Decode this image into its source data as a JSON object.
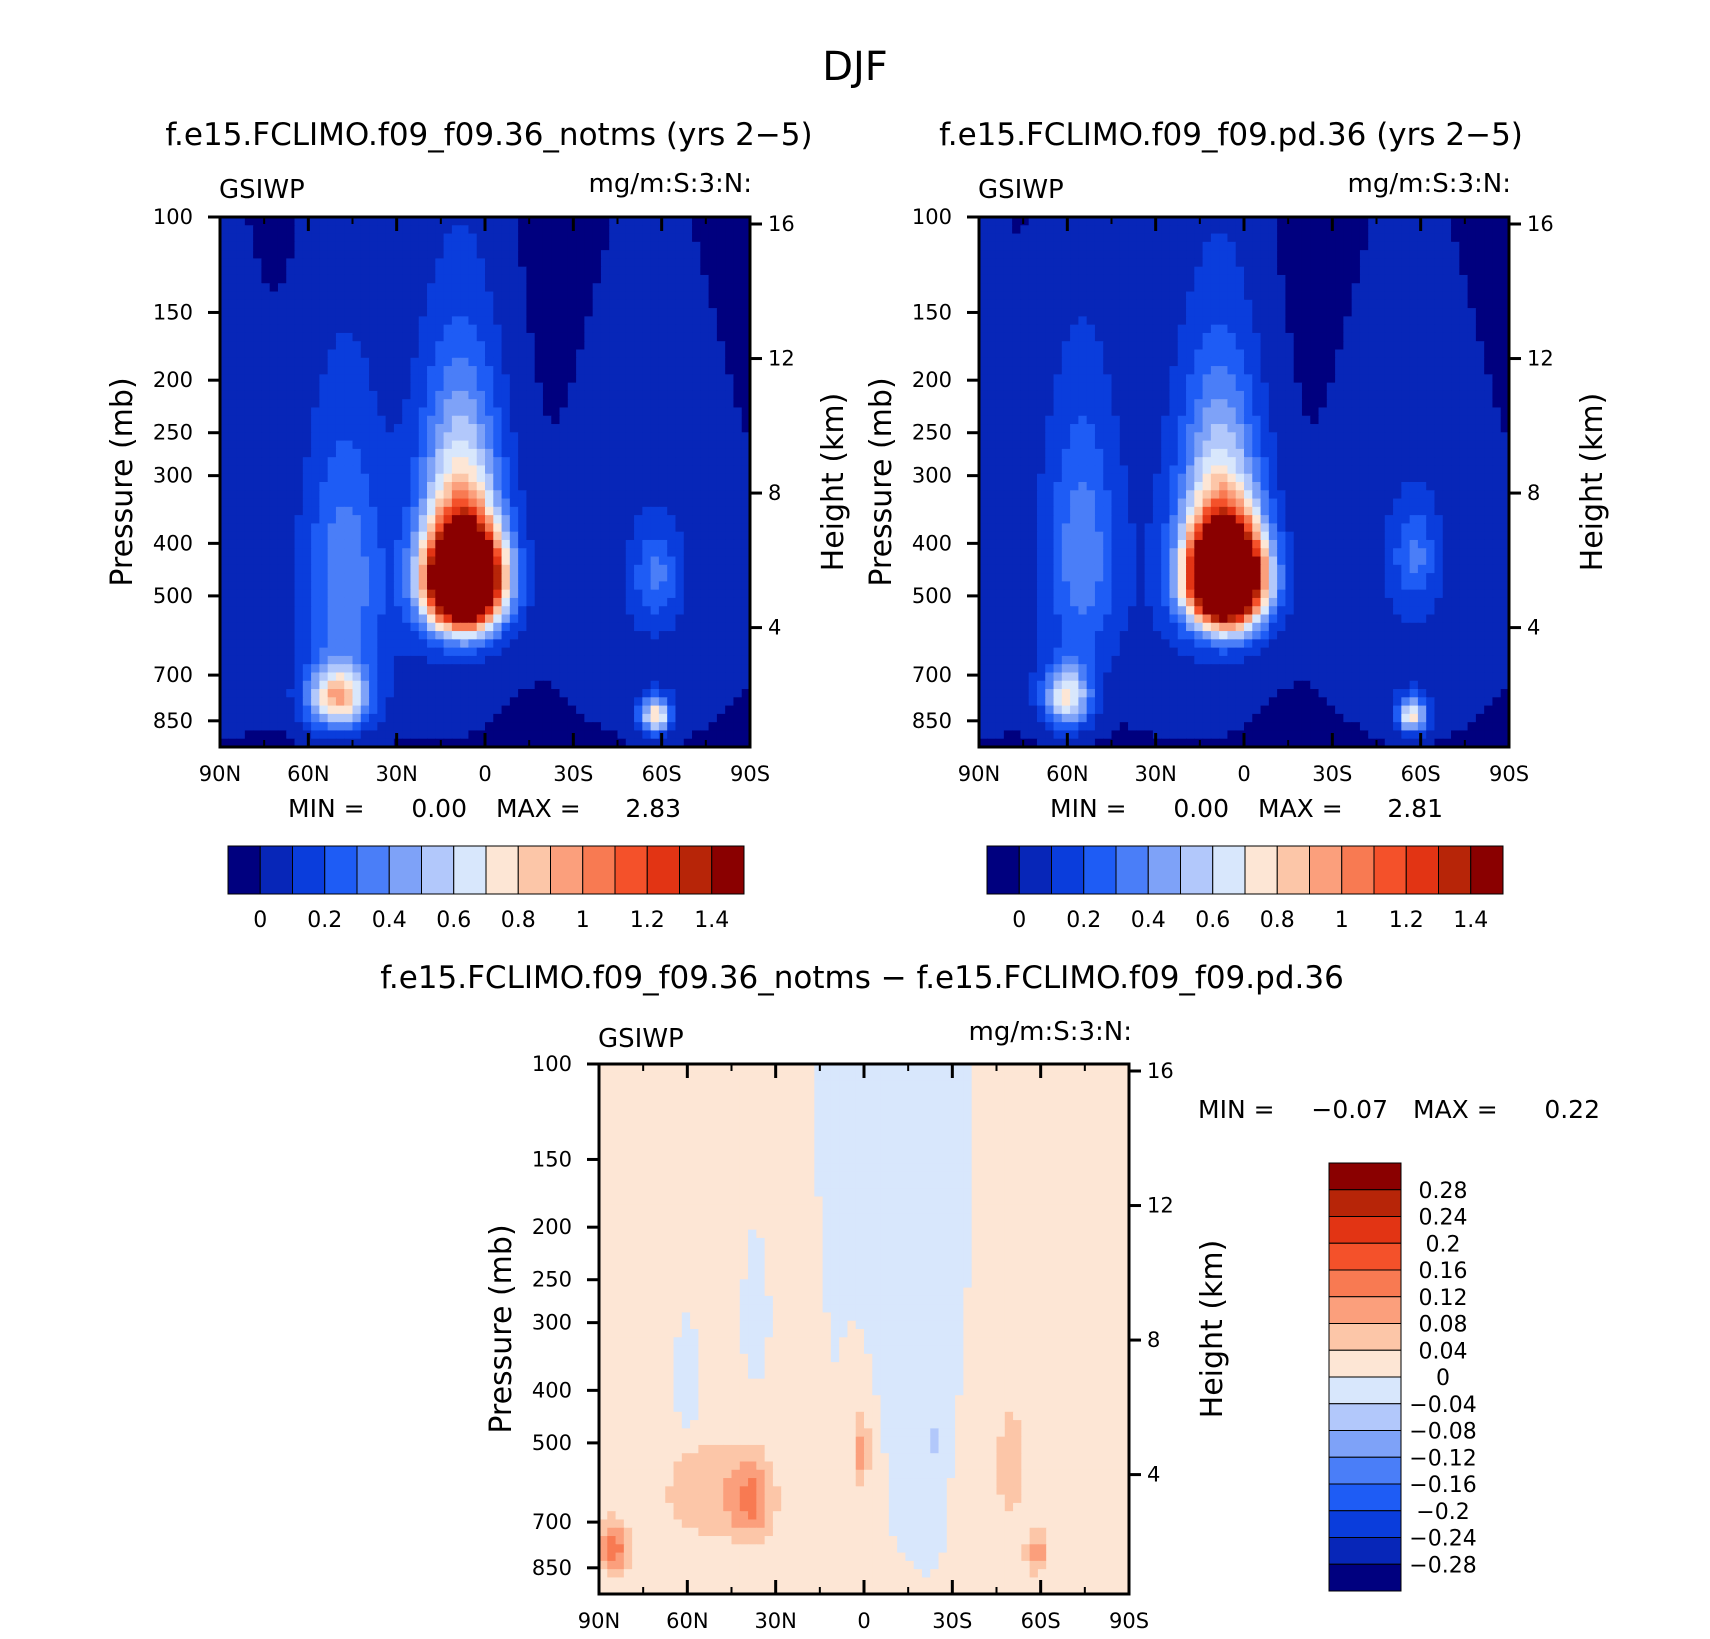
{
  "figure": {
    "title": "DJF"
  },
  "colors": {
    "panel_scale": [
      "#00007f",
      "#0726b8",
      "#0a3ddc",
      "#1e5cf5",
      "#4a7ef8",
      "#7ea2f8",
      "#b2c8fb",
      "#d8e7fc",
      "#fde6d5",
      "#fcc6a8",
      "#fb9f7c",
      "#f87a52",
      "#f4512a",
      "#e23414",
      "#b72508",
      "#8a0000"
    ],
    "diff_scale": [
      "#00007f",
      "#0726b8",
      "#0a3ddc",
      "#1e5cf5",
      "#4a7ef8",
      "#7ea2f8",
      "#b2c8fb",
      "#d8e7fc",
      "#fde6d5",
      "#fcc6a8",
      "#fb9f7c",
      "#f87a52",
      "#f4512a",
      "#e23414",
      "#b72508",
      "#8a0000"
    ]
  },
  "chart_data": [
    {
      "type": "heatmap",
      "title": "f.e15.FCLIMO.f09_f09.36_notms (yrs 2−5)",
      "left_label": "GSIWP",
      "right_label": "mg/m:S:3:N:",
      "ylabel": "Pressure (mb)",
      "y2label": "Height (km)",
      "x_ticks": [
        "90N",
        "60N",
        "30N",
        "0",
        "30S",
        "60S",
        "90S"
      ],
      "y_ticks": [
        "100",
        "150",
        "200",
        "250",
        "300",
        "400",
        "500",
        "700",
        "850"
      ],
      "y2_ticks": [
        "16",
        "12",
        "8",
        "4"
      ],
      "min_label": "MIN =",
      "min_value": "0.00",
      "max_label": "MAX =",
      "max_value": "2.83",
      "colorbar_labels": [
        "0",
        "0.2",
        "0.4",
        "0.6",
        "0.8",
        "1",
        "1.2",
        "1.4"
      ],
      "min": 0.0,
      "max": 2.83,
      "features": [
        {
          "lat": 7,
          "p": 470,
          "amp": 2.8,
          "lat_width": 12,
          "p_width": 95
        },
        {
          "lat": 8,
          "p": 340,
          "amp": 0.7,
          "lat_width": 13,
          "p_width": 160
        },
        {
          "lat": 50,
          "p": 770,
          "amp": 0.85,
          "lat_width": 10,
          "p_width": 100
        },
        {
          "lat": 48,
          "p": 470,
          "amp": 0.35,
          "lat_width": 13,
          "p_width": 260
        },
        {
          "lat": -58,
          "p": 830,
          "amp": 0.75,
          "lat_width": 5,
          "p_width": 60
        },
        {
          "lat": -58,
          "p": 460,
          "amp": 0.25,
          "lat_width": 7,
          "p_width": 80
        }
      ]
    },
    {
      "type": "heatmap",
      "title": "f.e15.FCLIMO.f09_f09.pd.36 (yrs 2−5)",
      "left_label": "GSIWP",
      "right_label": "mg/m:S:3:N:",
      "ylabel": "Pressure (mb)",
      "y2label": "Height (km)",
      "x_ticks": [
        "90N",
        "60N",
        "30N",
        "0",
        "30S",
        "60S",
        "90S"
      ],
      "y_ticks": [
        "100",
        "150",
        "200",
        "250",
        "300",
        "400",
        "500",
        "700",
        "850"
      ],
      "y2_ticks": [
        "16",
        "12",
        "8",
        "4"
      ],
      "min_label": "MIN =",
      "min_value": "0.00",
      "max_label": "MAX =",
      "max_value": "2.81",
      "colorbar_labels": [
        "0",
        "0.2",
        "0.4",
        "0.6",
        "0.8",
        "1",
        "1.2",
        "1.4"
      ],
      "min": 0.0,
      "max": 2.81,
      "features": [
        {
          "lat": 6,
          "p": 465,
          "amp": 2.8,
          "lat_width": 12,
          "p_width": 95
        },
        {
          "lat": 8,
          "p": 340,
          "amp": 0.65,
          "lat_width": 13,
          "p_width": 160
        },
        {
          "lat": 60,
          "p": 770,
          "amp": 0.7,
          "lat_width": 8,
          "p_width": 100
        },
        {
          "lat": 55,
          "p": 420,
          "amp": 0.35,
          "lat_width": 12,
          "p_width": 230
        },
        {
          "lat": -57,
          "p": 830,
          "amp": 0.7,
          "lat_width": 5,
          "p_width": 60
        },
        {
          "lat": -58,
          "p": 420,
          "amp": 0.25,
          "lat_width": 7,
          "p_width": 80
        }
      ]
    },
    {
      "type": "heatmap",
      "title": "f.e15.FCLIMO.f09_f09.36_notms − f.e15.FCLIMO.f09_f09.pd.36",
      "left_label": "GSIWP",
      "right_label": "mg/m:S:3:N:",
      "ylabel": "Pressure (mb)",
      "y2label": "Height (km)",
      "x_ticks": [
        "90N",
        "60N",
        "30N",
        "0",
        "30S",
        "60S",
        "90S"
      ],
      "y_ticks": [
        "100",
        "150",
        "200",
        "250",
        "300",
        "400",
        "500",
        "700",
        "850"
      ],
      "y2_ticks": [
        "16",
        "12",
        "8",
        "4"
      ],
      "min_label": "MIN =",
      "min_value": "−0.07",
      "max_label": "MAX =",
      "max_value": "0.22",
      "colorbar_labels": [
        "0.28",
        "0.24",
        "0.2",
        "0.16",
        "0.12",
        "0.08",
        "0.04",
        "0",
        "−0.04",
        "−0.08",
        "−0.12",
        "−0.16",
        "−0.2",
        "−0.24",
        "−0.28"
      ],
      "min": -0.07,
      "max": 0.22,
      "features": [
        {
          "lat": 85,
          "p": 780,
          "amp": 0.14,
          "lat_width": 6,
          "p_width": 90
        },
        {
          "lat": 38,
          "p": 640,
          "amp": 0.12,
          "lat_width": 8,
          "p_width": 120
        },
        {
          "lat": 55,
          "p": 620,
          "amp": 0.07,
          "lat_width": 15,
          "p_width": 150
        },
        {
          "lat": 1,
          "p": 520,
          "amp": 0.1,
          "lat_width": 3,
          "p_width": 90
        },
        {
          "lat": -59,
          "p": 800,
          "amp": 0.12,
          "lat_width": 4,
          "p_width": 70
        },
        {
          "lat": -50,
          "p": 550,
          "amp": 0.06,
          "lat_width": 7,
          "p_width": 180
        },
        {
          "lat": 60,
          "p": 420,
          "amp": -0.05,
          "lat_width": 3,
          "p_width": 60
        },
        {
          "lat": 37,
          "p": 320,
          "amp": -0.045,
          "lat_width": 2,
          "p_width": 40
        },
        {
          "lat": -24,
          "p": 500,
          "amp": -0.045,
          "lat_width": 2,
          "p_width": 90
        },
        {
          "lat": -15,
          "p": 250,
          "amp": -0.03,
          "lat_width": 8,
          "p_width": 120
        }
      ]
    }
  ]
}
